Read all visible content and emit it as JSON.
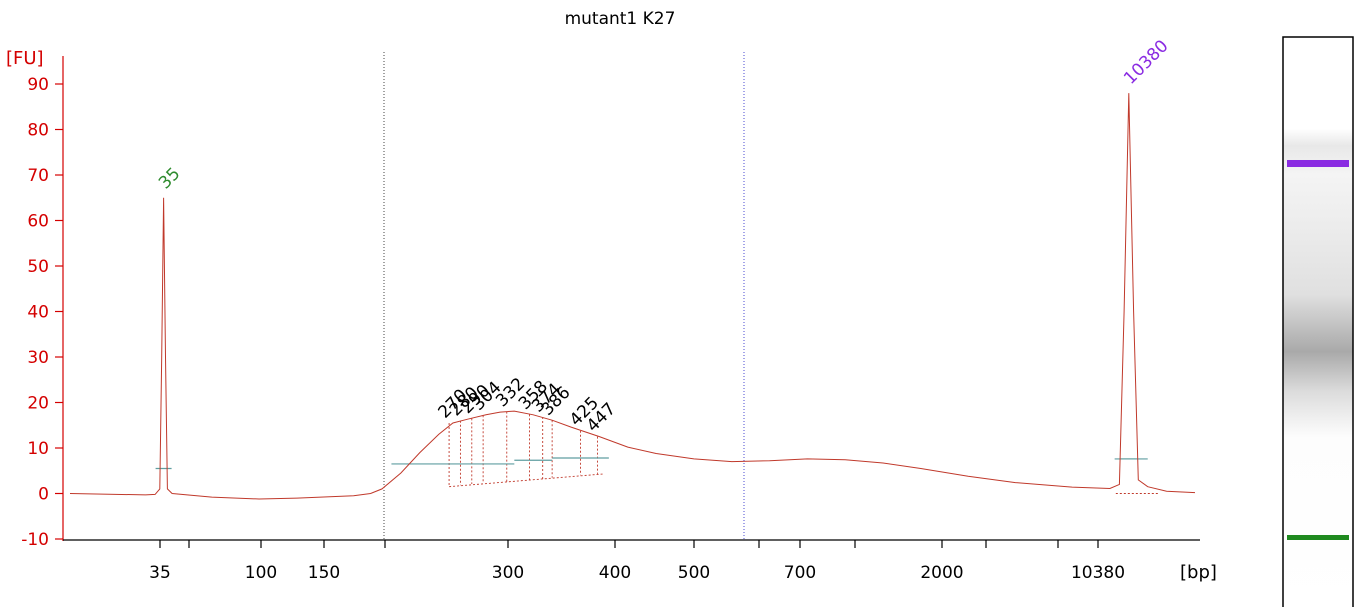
{
  "chart_data": {
    "type": "line",
    "title": "mutant1 K27",
    "ylabel": "[FU]",
    "xlabel": "[bp]",
    "ylim": [
      -10,
      95
    ],
    "y_ticks": [
      -10,
      0,
      10,
      20,
      30,
      40,
      50,
      60,
      70,
      80,
      90
    ],
    "x_ticks": [
      "35",
      "",
      "100",
      "150",
      "",
      "300",
      "400",
      "500",
      "",
      "700",
      "",
      "2000",
      "",
      "10380"
    ],
    "trace_color": "#c0392b",
    "axis_color": "#d40000",
    "series": [
      {
        "values": [
          [
            0,
            0
          ],
          [
            80,
            -0.3
          ],
          [
            90,
            -0.2
          ],
          [
            95,
            1
          ],
          [
            97,
            30
          ],
          [
            99,
            65
          ],
          [
            101,
            30
          ],
          [
            103,
            1
          ],
          [
            108,
            0
          ],
          [
            150,
            -0.8
          ],
          [
            200,
            -1.2
          ],
          [
            240,
            -1
          ],
          [
            300,
            -0.5
          ],
          [
            318,
            0
          ],
          [
            330,
            1
          ],
          [
            350,
            4.5
          ],
          [
            370,
            9
          ],
          [
            390,
            13
          ],
          [
            405,
            15.5
          ],
          [
            420,
            16.3
          ],
          [
            440,
            17.3
          ],
          [
            455,
            17.9
          ],
          [
            470,
            18.1
          ],
          [
            490,
            17.3
          ],
          [
            510,
            16.1
          ],
          [
            530,
            14.6
          ],
          [
            560,
            12.5
          ],
          [
            590,
            10.2
          ],
          [
            620,
            8.8
          ],
          [
            660,
            7.6
          ],
          [
            700,
            7.0
          ],
          [
            740,
            7.2
          ],
          [
            780,
            7.6
          ],
          [
            820,
            7.4
          ],
          [
            860,
            6.7
          ],
          [
            900,
            5.5
          ],
          [
            950,
            3.8
          ],
          [
            1000,
            2.4
          ],
          [
            1060,
            1.4
          ],
          [
            1100,
            1.1
          ],
          [
            1110,
            2
          ],
          [
            1115,
            40
          ],
          [
            1120,
            88
          ],
          [
            1125,
            40
          ],
          [
            1130,
            3
          ],
          [
            1140,
            1.5
          ],
          [
            1160,
            0.5
          ],
          [
            1190,
            0.2
          ]
        ]
      }
    ],
    "markers": [
      {
        "label": "35",
        "color": "#2e8b2e",
        "x": 99,
        "y": 65,
        "baseline": 5.5
      },
      {
        "label": "10380",
        "color": "#8a2be2",
        "x": 1120,
        "y": 88,
        "baseline": 7.6
      }
    ],
    "peak_labels": [
      "270",
      "280",
      "290",
      "304",
      "332",
      "358",
      "374",
      "386",
      "425",
      "447"
    ],
    "peaks": [
      {
        "x": 401,
        "y": 15.5,
        "low": 1.5
      },
      {
        "x": 413,
        "y": 16.0,
        "low": 1.8
      },
      {
        "x": 425,
        "y": 16.5,
        "low": 2.1
      },
      {
        "x": 437,
        "y": 17.2,
        "low": 2.3
      },
      {
        "x": 462,
        "y": 18.0,
        "low": 2.6
      },
      {
        "x": 486,
        "y": 17.4,
        "low": 2.9
      },
      {
        "x": 500,
        "y": 16.8,
        "low": 3.2
      },
      {
        "x": 510,
        "y": 16.1,
        "low": 3.5
      },
      {
        "x": 540,
        "y": 13.8,
        "low": 4.0
      },
      {
        "x": 558,
        "y": 12.5,
        "low": 4.3
      }
    ],
    "baselines": [
      {
        "x1": 340,
        "x2": 470,
        "y": 6.5
      },
      {
        "x1": 470,
        "x2": 510,
        "y": 7.3
      },
      {
        "x1": 510,
        "x2": 570,
        "y": 7.8
      }
    ],
    "region_lines": [
      318,
      690
    ]
  }
}
